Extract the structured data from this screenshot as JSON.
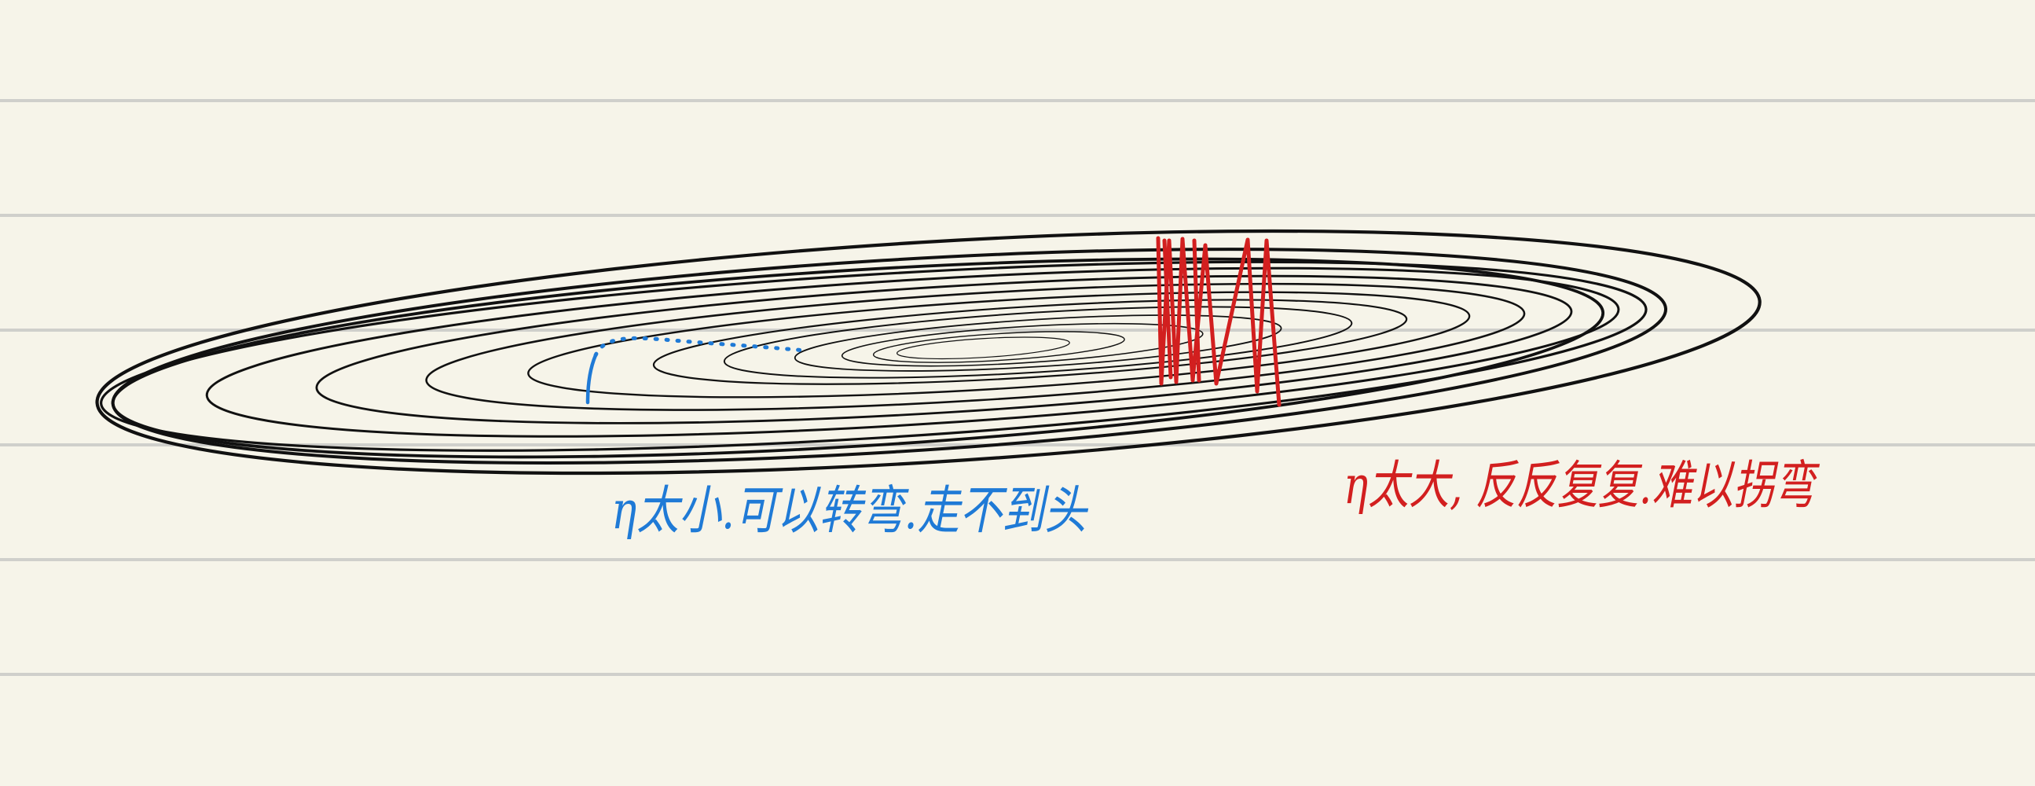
{
  "notes": {
    "small_lr": "η太小.可以转弯.走不到头",
    "large_lr": "η太大, 反反复复.难以拐弯"
  },
  "colors": {
    "paper": "#f6f4e9",
    "ruled_line": "#cfcfcb",
    "contour": "#111111",
    "small_lr_ink": "#1f7ad6",
    "large_lr_ink": "#d21f1f"
  }
}
